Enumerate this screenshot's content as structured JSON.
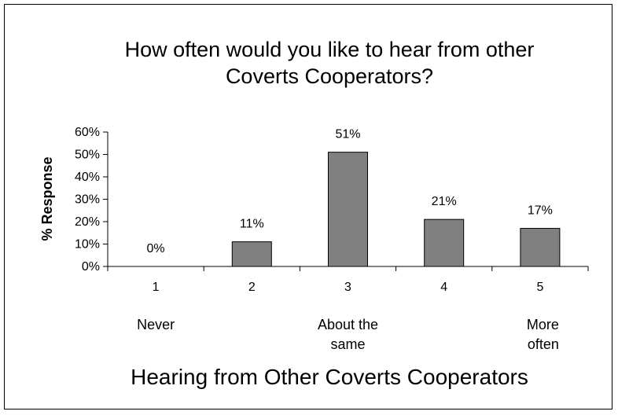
{
  "chart_data": {
    "type": "bar",
    "title_lines": [
      "How often would you like to hear from other",
      "Coverts Cooperators?"
    ],
    "ylabel": "% Response",
    "xlabel": "Hearing from Other Coverts Cooperators",
    "categories": [
      "1",
      "2",
      "3",
      "4",
      "5"
    ],
    "values": [
      0,
      11,
      51,
      21,
      17
    ],
    "data_labels": [
      "0%",
      "11%",
      "51%",
      "21%",
      "17%"
    ],
    "ylim": [
      0,
      60
    ],
    "yticks": [
      0,
      10,
      20,
      30,
      40,
      50,
      60
    ],
    "ytick_labels": [
      "0%",
      "10%",
      "20%",
      "30%",
      "40%",
      "50%",
      "60%"
    ],
    "scale_anchors": [
      {
        "category": "1",
        "lines": [
          "Never"
        ]
      },
      {
        "category": "3",
        "lines": [
          "About the",
          "same"
        ]
      },
      {
        "category": "5",
        "lines": [
          "More",
          "often"
        ]
      }
    ],
    "bar_color": "#808080",
    "grid": false,
    "legend": "none"
  }
}
